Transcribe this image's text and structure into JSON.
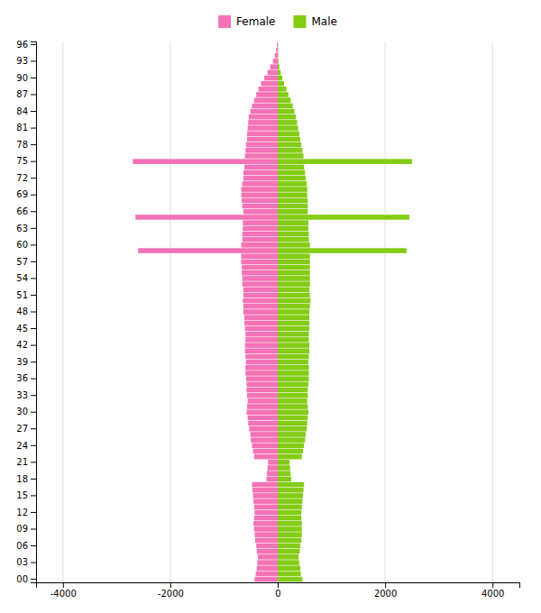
{
  "chart_data": {
    "type": "bar",
    "orientation": "horizontal",
    "categories": [
      "00",
      null,
      null,
      "03",
      null,
      null,
      "06",
      null,
      null,
      "09",
      null,
      null,
      "12",
      null,
      null,
      "15",
      null,
      null,
      "18",
      null,
      null,
      "21",
      null,
      null,
      "24",
      null,
      null,
      "27",
      null,
      null,
      "30",
      null,
      null,
      "33",
      null,
      null,
      "36",
      null,
      null,
      "39",
      null,
      null,
      "42",
      null,
      null,
      "45",
      null,
      null,
      "48",
      null,
      null,
      "51",
      null,
      null,
      "54",
      null,
      null,
      "57",
      null,
      null,
      "60",
      null,
      null,
      "63",
      null,
      null,
      "66",
      null,
      null,
      "69",
      null,
      null,
      "72",
      null,
      null,
      "75",
      null,
      null,
      "78",
      null,
      null,
      "81",
      null,
      null,
      "84",
      null,
      null,
      "87",
      null,
      null,
      "90",
      null,
      null,
      "93",
      null,
      null,
      "96"
    ],
    "series": [
      {
        "name": "Female",
        "color": "#f472b6",
        "values": [
          -430,
          -410,
          -390,
          -380,
          -370,
          -390,
          -400,
          -420,
          -430,
          -440,
          -450,
          -440,
          -430,
          -440,
          -450,
          -460,
          -470,
          -480,
          -210,
          -200,
          -190,
          -180,
          -440,
          -460,
          -480,
          -500,
          -510,
          -530,
          -550,
          -560,
          -580,
          -570,
          -560,
          -570,
          -580,
          -580,
          -590,
          -600,
          -600,
          -590,
          -600,
          -610,
          -610,
          -600,
          -600,
          -610,
          -620,
          -620,
          -640,
          -640,
          -650,
          -640,
          -640,
          -660,
          -660,
          -670,
          -670,
          -680,
          -680,
          -2600,
          -680,
          -660,
          -660,
          -650,
          -650,
          -2650,
          -640,
          -660,
          -670,
          -680,
          -680,
          -660,
          -640,
          -640,
          -620,
          -2700,
          -610,
          -600,
          -590,
          -570,
          -570,
          -560,
          -550,
          -540,
          -510,
          -480,
          -440,
          -400,
          -360,
          -310,
          -250,
          -190,
          -140,
          -90,
          -55,
          -30,
          -15
        ]
      },
      {
        "name": "Male",
        "color": "#84cc16",
        "values": [
          460,
          430,
          420,
          400,
          390,
          410,
          420,
          440,
          450,
          450,
          450,
          440,
          440,
          450,
          460,
          470,
          480,
          490,
          250,
          240,
          230,
          220,
          450,
          470,
          490,
          510,
          520,
          540,
          550,
          560,
          570,
          560,
          550,
          560,
          560,
          570,
          580,
          580,
          580,
          570,
          580,
          590,
          590,
          580,
          580,
          590,
          590,
          590,
          590,
          600,
          610,
          600,
          590,
          600,
          600,
          600,
          600,
          600,
          600,
          2400,
          600,
          580,
          580,
          570,
          570,
          2450,
          560,
          560,
          560,
          550,
          550,
          540,
          520,
          510,
          490,
          2500,
          480,
          460,
          440,
          420,
          400,
          380,
          360,
          340,
          310,
          280,
          240,
          200,
          160,
          120,
          85,
          55,
          30,
          15,
          8,
          4,
          2
        ]
      }
    ],
    "xlim": [
      -4500,
      4500
    ],
    "xticks": [
      -4000,
      -2000,
      0,
      2000,
      4000
    ],
    "grid": true,
    "legend": "top"
  }
}
